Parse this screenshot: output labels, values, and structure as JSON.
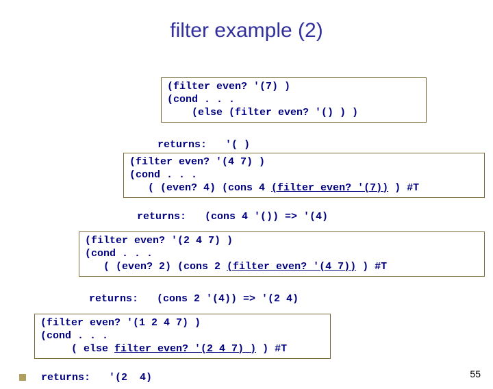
{
  "title": "filter example (2)",
  "box1": {
    "line1": "(filter even? '(7) )",
    "line2": "(cond . . .",
    "line3": "    (else (filter even? '() ) )"
  },
  "ret1": "returns:   '( )",
  "box2": {
    "line1": "(filter even? '(4 7) )",
    "line2": "(cond . . .",
    "line3_a": "   ( (even? 4) (cons 4 ",
    "line3_u": "(filter even? '(7))",
    "line3_b": " ) #T"
  },
  "ret2": "returns:   (cons 4 '()) => '(4)",
  "box3": {
    "line1": "(filter even? '(2 4 7) )",
    "line2": "(cond . . .",
    "line3_a": "   ( (even? 2) (cons 2 ",
    "line3_u": "(filter even? '(4 7))",
    "line3_b": " ) #T"
  },
  "ret3": "returns:   (cons 2 '(4)) => '(2 4)",
  "box4": {
    "line1": "(filter even? '(1 2 4 7) )",
    "line2": "(cond . . .",
    "line3_a": "     ( else ",
    "line3_u": "filter even? '(2 4 7) )",
    "line3_b": " ) #T"
  },
  "ret4": "returns:   '(2  4)",
  "page_number": "55"
}
